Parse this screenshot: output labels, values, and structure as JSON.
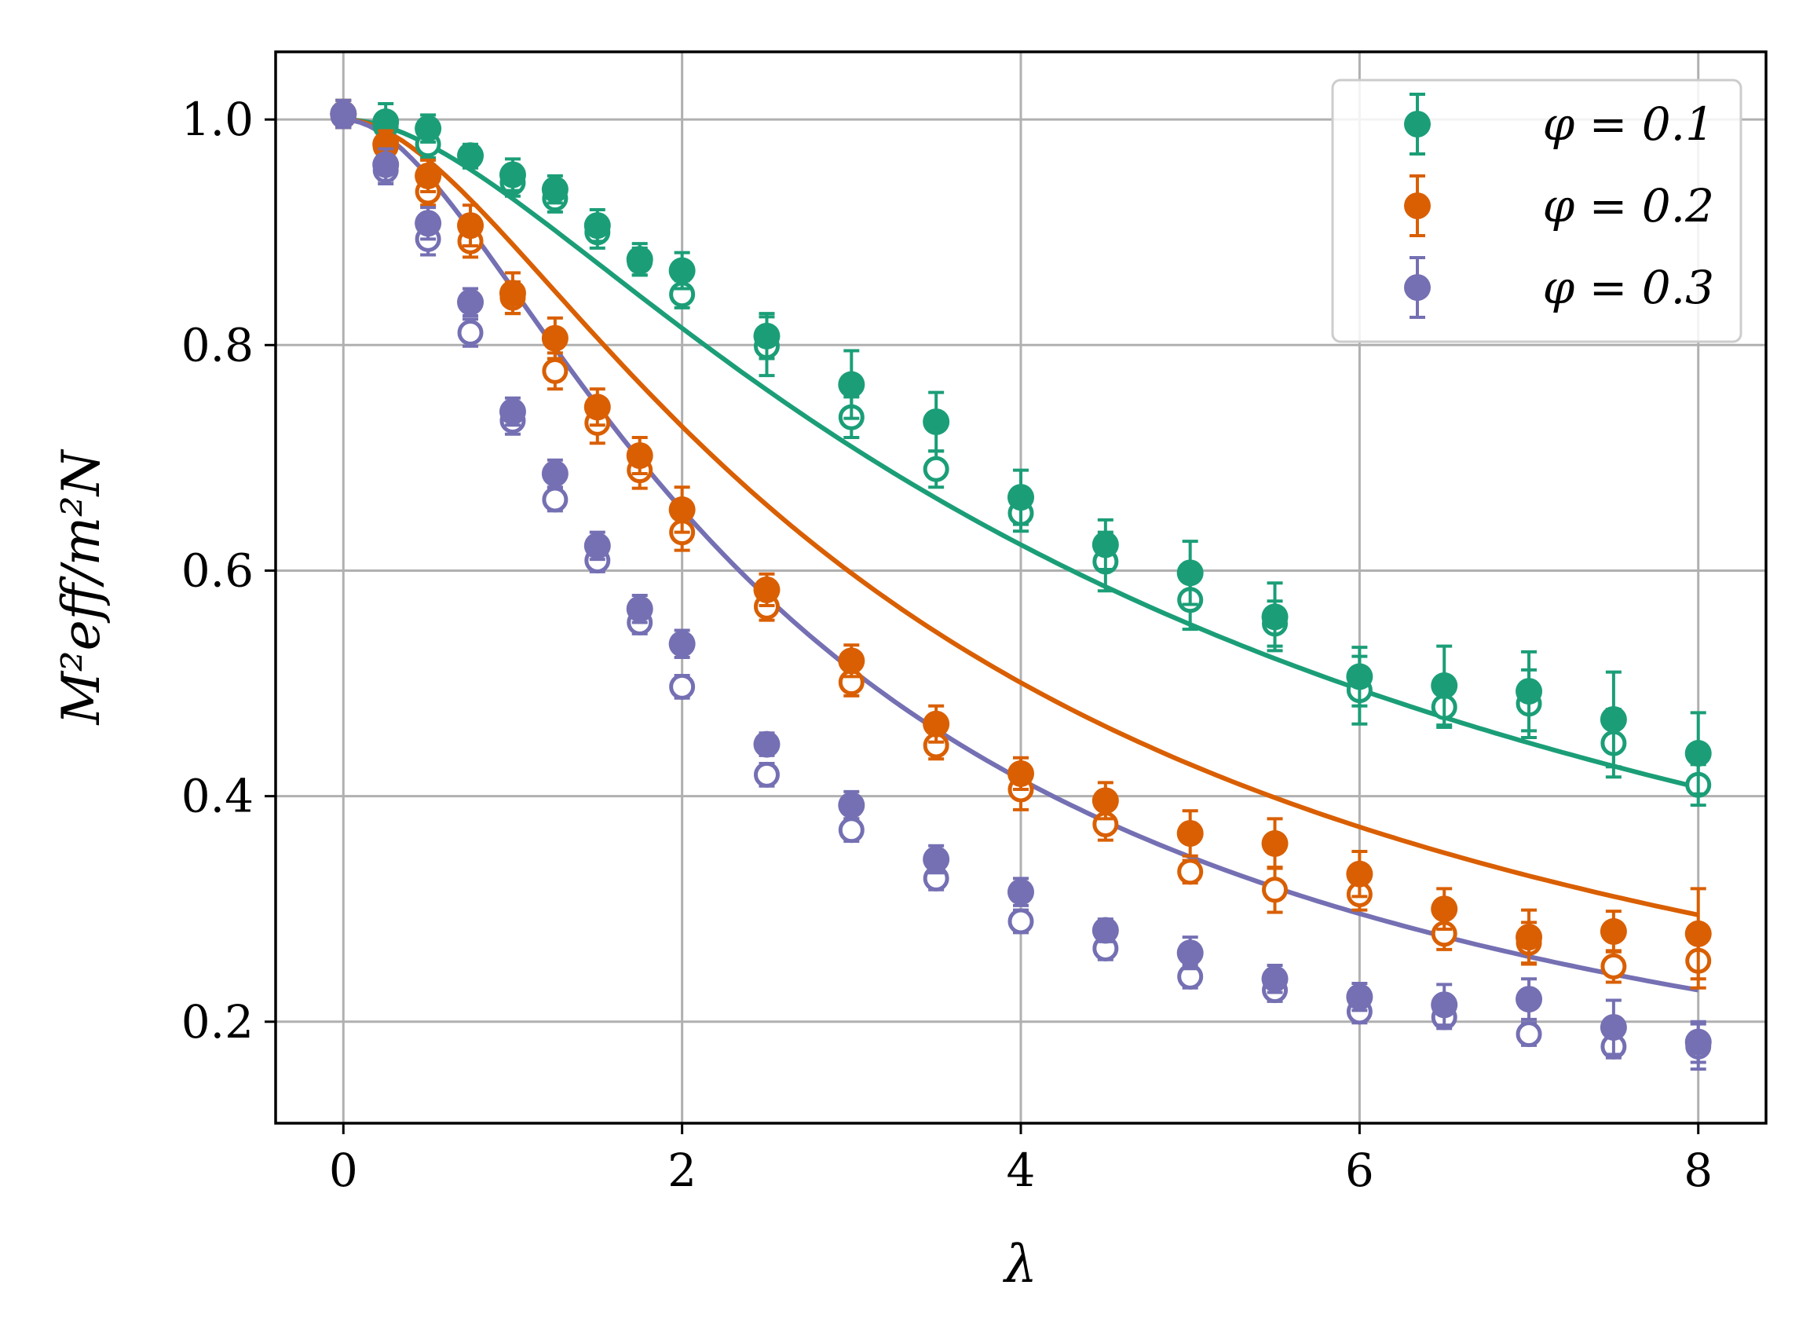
{
  "chart_data": {
    "type": "line",
    "title": "",
    "xlabel": "λ",
    "ylabel": "M²eff/m²N",
    "xlim": [
      -0.4,
      8.4
    ],
    "ylim": [
      0.11,
      1.06
    ],
    "xticks": [
      0,
      2,
      4,
      6,
      8
    ],
    "xtick_labels": [
      "0",
      "2",
      "4",
      "6",
      "8"
    ],
    "yticks": [
      0.2,
      0.4,
      0.6,
      0.8,
      1.0
    ],
    "ytick_labels": [
      "0.2",
      "0.4",
      "0.6",
      "0.8",
      "1.0"
    ],
    "grid": true,
    "legend_position": "top-right",
    "series": [
      {
        "name": "φ = 0.1",
        "color": "#1b9e77",
        "fit_decay": 0.1135,
        "x": [
          0,
          0.25,
          0.5,
          0.75,
          1,
          1.25,
          1.5,
          1.75,
          2,
          2.5,
          3,
          3.5,
          4,
          4.5,
          5,
          5.5,
          6,
          6.5,
          7,
          7.5,
          8
        ],
        "filled": [
          1.005,
          0.998,
          0.992,
          0.968,
          0.951,
          0.938,
          0.906,
          0.876,
          0.866,
          0.808,
          0.765,
          0.732,
          0.665,
          0.623,
          0.598,
          0.559,
          0.506,
          0.498,
          0.493,
          0.468,
          0.438
        ],
        "filled_err": [
          0.012,
          0.016,
          0.012,
          0.01,
          0.014,
          0.012,
          0.014,
          0.014,
          0.016,
          0.02,
          0.03,
          0.026,
          0.024,
          0.022,
          0.028,
          0.03,
          0.026,
          0.035,
          0.035,
          0.042,
          0.036
        ],
        "open": [
          1.003,
          0.994,
          0.978,
          0.967,
          0.944,
          0.93,
          0.9,
          0.874,
          0.845,
          0.799,
          0.736,
          0.69,
          0.651,
          0.608,
          0.574,
          0.553,
          0.494,
          0.479,
          0.482,
          0.447,
          0.41
        ],
        "open_err": [
          0.01,
          0.01,
          0.012,
          0.01,
          0.012,
          0.012,
          0.014,
          0.012,
          0.012,
          0.026,
          0.018,
          0.016,
          0.016,
          0.026,
          0.026,
          0.02,
          0.03,
          0.018,
          0.03,
          0.03,
          0.018
        ]
      },
      {
        "name": "φ = 0.2",
        "color": "#d95f02",
        "fit_decay": 0.187,
        "x": [
          0,
          0.25,
          0.5,
          0.75,
          1,
          1.25,
          1.5,
          1.75,
          2,
          2.5,
          3,
          3.5,
          4,
          4.5,
          5,
          5.5,
          6,
          6.5,
          7,
          7.5,
          8
        ],
        "filled": [
          1.005,
          0.978,
          0.95,
          0.906,
          0.846,
          0.806,
          0.745,
          0.702,
          0.654,
          0.583,
          0.52,
          0.464,
          0.42,
          0.396,
          0.367,
          0.358,
          0.331,
          0.3,
          0.275,
          0.28,
          0.278
        ],
        "filled_err": [
          0.012,
          0.012,
          0.014,
          0.018,
          0.018,
          0.018,
          0.016,
          0.016,
          0.02,
          0.014,
          0.014,
          0.016,
          0.014,
          0.016,
          0.02,
          0.022,
          0.02,
          0.018,
          0.024,
          0.018,
          0.04
        ],
        "open": [
          1.003,
          0.976,
          0.936,
          0.892,
          0.842,
          0.777,
          0.731,
          0.689,
          0.634,
          0.568,
          0.501,
          0.445,
          0.406,
          0.375,
          0.333,
          0.317,
          0.313,
          0.278,
          0.27,
          0.249,
          0.254
        ],
        "open_err": [
          0.01,
          0.01,
          0.012,
          0.014,
          0.014,
          0.016,
          0.018,
          0.016,
          0.016,
          0.012,
          0.012,
          0.012,
          0.018,
          0.014,
          0.01,
          0.02,
          0.014,
          0.014,
          0.018,
          0.014,
          0.024
        ]
      },
      {
        "name": "φ = 0.3",
        "color": "#7570b3",
        "fit_decay": 0.2645,
        "x": [
          0,
          0.25,
          0.5,
          0.75,
          1,
          1.25,
          1.5,
          1.75,
          2,
          2.5,
          3,
          3.5,
          4,
          4.5,
          5,
          5.5,
          6,
          6.5,
          7,
          7.5,
          8
        ],
        "filled": [
          1.005,
          0.96,
          0.908,
          0.838,
          0.741,
          0.686,
          0.622,
          0.566,
          0.535,
          0.446,
          0.392,
          0.344,
          0.315,
          0.281,
          0.261,
          0.238,
          0.222,
          0.215,
          0.22,
          0.195,
          0.182
        ],
        "filled_err": [
          0.012,
          0.014,
          0.014,
          0.012,
          0.012,
          0.012,
          0.012,
          0.012,
          0.012,
          0.01,
          0.012,
          0.012,
          0.012,
          0.01,
          0.014,
          0.012,
          0.012,
          0.018,
          0.018,
          0.024,
          0.018
        ],
        "open": [
          1.003,
          0.955,
          0.894,
          0.811,
          0.733,
          0.663,
          0.609,
          0.554,
          0.497,
          0.419,
          0.37,
          0.327,
          0.289,
          0.265,
          0.24,
          0.228,
          0.209,
          0.204,
          0.189,
          0.178,
          0.178
        ],
        "open_err": [
          0.01,
          0.012,
          0.014,
          0.012,
          0.012,
          0.01,
          0.01,
          0.01,
          0.01,
          0.01,
          0.01,
          0.01,
          0.01,
          0.01,
          0.01,
          0.01,
          0.01,
          0.01,
          0.01,
          0.01,
          0.02
        ]
      }
    ]
  }
}
